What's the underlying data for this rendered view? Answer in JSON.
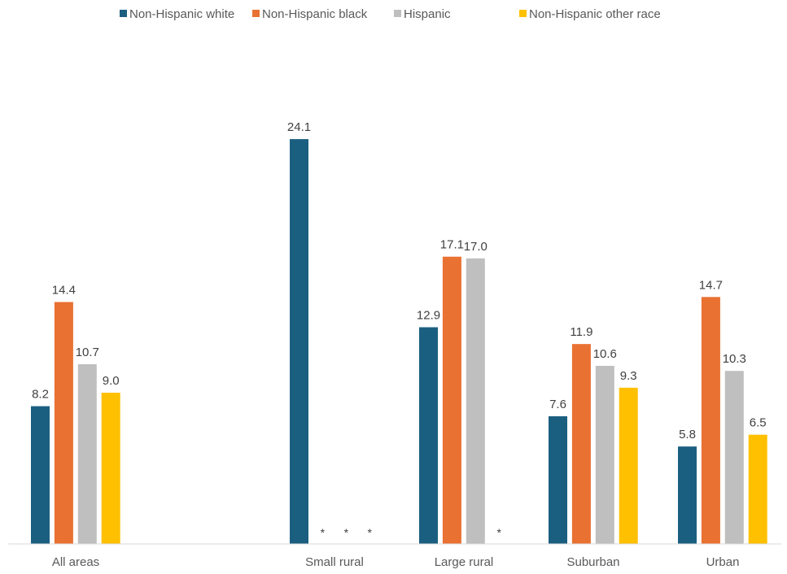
{
  "chart_data": {
    "type": "bar",
    "title": "",
    "xlabel": "",
    "ylabel": "",
    "ylim": [
      0,
      25
    ],
    "grid": false,
    "legend_position": "top",
    "categories": [
      "All areas",
      "",
      "Small rural",
      "Large rural",
      "Suburban",
      "Urban"
    ],
    "series": [
      {
        "name": "Non-Hispanic white",
        "color": "#1B5F80",
        "values": [
          8.2,
          null,
          24.1,
          12.9,
          7.6,
          5.8
        ],
        "labels": [
          "8.2",
          "",
          "24.1",
          "12.9",
          "7.6",
          "5.8"
        ]
      },
      {
        "name": "Non-Hispanic black",
        "color": "#E97132",
        "values": [
          14.4,
          null,
          null,
          17.1,
          11.9,
          14.7
        ],
        "labels": [
          "14.4",
          "",
          "*",
          "17.1",
          "11.9",
          "14.7"
        ]
      },
      {
        "name": "Hispanic",
        "color": "#BFBFBF",
        "values": [
          10.7,
          null,
          null,
          17.0,
          10.6,
          10.3
        ],
        "labels": [
          "10.7",
          "",
          "*",
          "17.0",
          "10.6",
          "10.3"
        ]
      },
      {
        "name": "Non-Hispanic other race",
        "color": "#FFC000",
        "values": [
          9.0,
          null,
          null,
          null,
          9.3,
          6.5
        ],
        "labels": [
          "9.0",
          "",
          "*",
          "*",
          "9.3",
          "6.5"
        ]
      }
    ]
  }
}
